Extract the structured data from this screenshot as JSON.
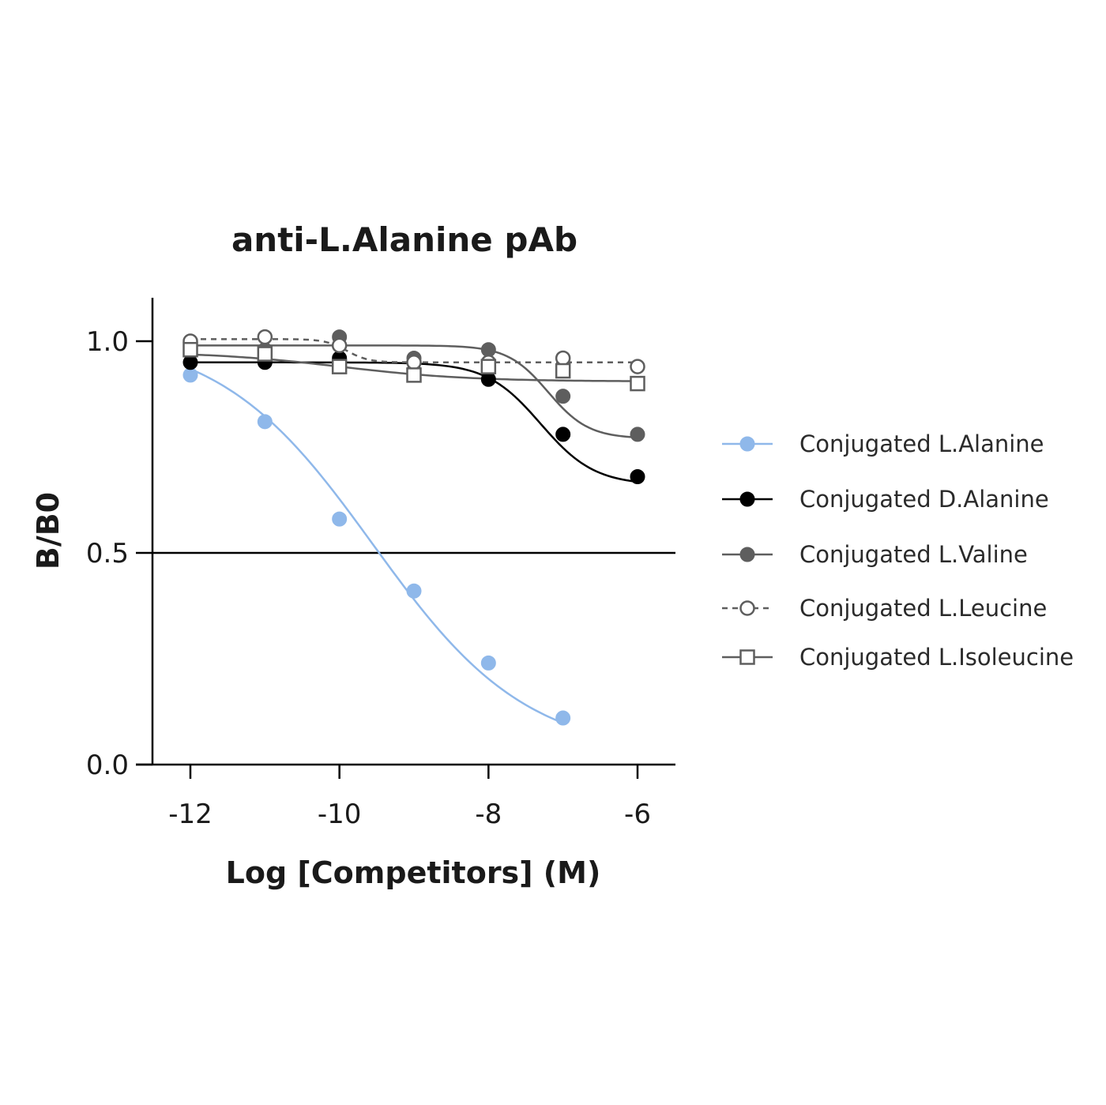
{
  "chart_data": {
    "type": "scatter",
    "title": "anti-L.Alanine pAb",
    "xlabel": "Log [Competitors] (M)",
    "ylabel": "B/B0",
    "xlim": [
      -12.5,
      -5.5
    ],
    "ylim": [
      0,
      1.1
    ],
    "x_ticks": [
      -12,
      -10,
      -8,
      -6
    ],
    "y_ticks": [
      0.0,
      0.5,
      1.0
    ],
    "x_tick_labels": [
      "-12",
      "-10",
      "-8",
      "-6"
    ],
    "y_tick_labels": [
      "0.0",
      "0.5",
      "1.0"
    ],
    "reference_line": {
      "y": 0.5
    },
    "legend_position": "right",
    "grid": false,
    "series": [
      {
        "name": "Conjugated L.Alanine",
        "color": "#8fb8ea",
        "marker": "filled-circle",
        "line": "solid",
        "x": [
          -12,
          -11,
          -10,
          -9,
          -8,
          -7
        ],
        "y": [
          0.92,
          0.81,
          0.58,
          0.41,
          0.24,
          0.11
        ],
        "fit": {
          "bottom": 0.02,
          "top": 1.02,
          "log_ic50": -9.55,
          "hill": 0.42
        }
      },
      {
        "name": "Conjugated D.Alanine",
        "color": "#000000",
        "marker": "filled-circle",
        "line": "solid",
        "x": [
          -12,
          -11,
          -10,
          -9,
          -8,
          -7,
          -6
        ],
        "y": [
          0.95,
          0.95,
          0.96,
          0.93,
          0.91,
          0.78,
          0.68
        ],
        "fit": {
          "bottom": 0.66,
          "top": 0.95,
          "log_ic50": -7.3,
          "hill": 1.2
        }
      },
      {
        "name": "Conjugated L.Valine",
        "color": "#5e5e5e",
        "marker": "filled-circle",
        "line": "solid",
        "x": [
          -12,
          -11,
          -10,
          -9,
          -8,
          -7,
          -6
        ],
        "y": [
          1.0,
          0.98,
          1.01,
          0.96,
          0.98,
          0.87,
          0.78
        ],
        "fit": {
          "bottom": 0.77,
          "top": 0.99,
          "log_ic50": -7.2,
          "hill": 1.6
        }
      },
      {
        "name": "Conjugated L.Leucine",
        "color": "#5e5e5e",
        "marker": "open-circle",
        "line": "dashed",
        "x": [
          -12,
          -11,
          -10,
          -9,
          -8,
          -7,
          -6
        ],
        "y": [
          1.0,
          1.01,
          0.99,
          0.95,
          0.95,
          0.96,
          0.94
        ],
        "fit": {
          "bottom": 0.95,
          "top": 1.005,
          "log_ic50": -9.9,
          "hill": 3.0
        }
      },
      {
        "name": "Conjugated L.Isoleucine",
        "color": "#5e5e5e",
        "marker": "open-square",
        "line": "solid",
        "x": [
          -12,
          -11,
          -10,
          -9,
          -8,
          -7,
          -6
        ],
        "y": [
          0.98,
          0.97,
          0.94,
          0.92,
          0.94,
          0.93,
          0.9
        ],
        "fit": {
          "bottom": 0.905,
          "top": 0.975,
          "log_ic50": -10.0,
          "hill": 0.5
        }
      }
    ]
  }
}
